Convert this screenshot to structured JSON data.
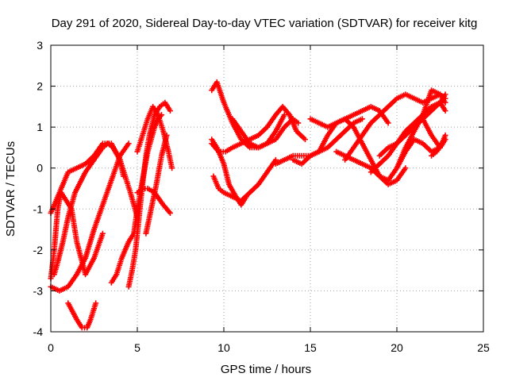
{
  "colors": {
    "series": "#ff0000",
    "grid": "#a0a0a0",
    "axis": "#000000"
  },
  "chart_data": {
    "type": "scatter",
    "title": "Day 291 of 2020, Sidereal Day-to-day VTEC variation (SDTVAR) for receiver kitg",
    "xlabel": "GPS time / hours",
    "ylabel": "SDTVAR / TECUs",
    "xlim": [
      0,
      25
    ],
    "ylim": [
      -4,
      3
    ],
    "xticks": [
      "0",
      "5",
      "10",
      "15",
      "20",
      "25"
    ],
    "yticks": [
      "-4",
      "-3",
      "-2",
      "-1",
      "0",
      "1",
      "2",
      "3"
    ],
    "grid": true,
    "marker": "plus",
    "series": [
      {
        "x": [
          0.0,
          0.5,
          1.0,
          1.5,
          2.0,
          2.5,
          3.0,
          3.5,
          4.0,
          4.2
        ],
        "y": [
          -1.1,
          -0.6,
          -0.1,
          0.0,
          0.1,
          0.3,
          0.6,
          0.6,
          0.2,
          -0.2
        ]
      },
      {
        "x": [
          0.0,
          0.2,
          0.4,
          0.6,
          0.9,
          1.2,
          1.5,
          2.0,
          2.5,
          3.0
        ],
        "y": [
          -2.7,
          -2.0,
          -1.0,
          -0.6,
          -0.8,
          -1.0,
          -1.8,
          -2.6,
          -2.2,
          -1.6
        ]
      },
      {
        "x": [
          0.0,
          0.5,
          1.0,
          1.5,
          2.0,
          2.5,
          3.0,
          3.5,
          4.0,
          4.5
        ],
        "y": [
          -2.9,
          -3.0,
          -2.9,
          -2.6,
          -2.2,
          -1.5,
          -0.9,
          -0.3,
          0.3,
          0.6
        ]
      },
      {
        "x": [
          1.0,
          1.5,
          1.8,
          2.1,
          2.3,
          2.6
        ],
        "y": [
          -3.3,
          -3.7,
          -3.9,
          -3.9,
          -3.7,
          -3.3
        ]
      },
      {
        "x": [
          0.2,
          0.4,
          0.7,
          1.0,
          1.4,
          2.0,
          2.5,
          3.0,
          3.3,
          3.6,
          4.0,
          4.3,
          4.6,
          5.0
        ],
        "y": [
          -2.6,
          -2.3,
          -1.8,
          -1.2,
          -0.6,
          -0.1,
          0.2,
          0.5,
          0.6,
          0.5,
          0.2,
          -0.2,
          -0.6,
          -1.2
        ]
      },
      {
        "x": [
          3.5,
          3.8,
          4.1,
          4.5,
          4.8,
          5.0,
          5.3,
          5.6,
          6.0,
          6.2,
          6.4
        ],
        "y": [
          -2.8,
          -2.6,
          -2.2,
          -1.8,
          -1.6,
          -1.0,
          -0.3,
          0.4,
          1.0,
          1.2,
          1.3
        ]
      },
      {
        "x": [
          4.5,
          4.7,
          4.9,
          5.1,
          5.3,
          5.5,
          5.7,
          6.0,
          6.3,
          6.6,
          6.9
        ],
        "y": [
          -2.9,
          -2.5,
          -2.0,
          -1.2,
          -0.4,
          0.3,
          0.8,
          1.3,
          1.5,
          1.6,
          1.4
        ]
      },
      {
        "x": [
          5.0,
          5.3,
          5.6,
          6.0,
          6.5,
          6.9
        ],
        "y": [
          -0.6,
          -0.5,
          -0.5,
          -0.6,
          -0.9,
          -1.1
        ]
      },
      {
        "x": [
          5.0,
          5.3,
          5.6,
          5.9,
          6.2,
          6.5,
          6.8,
          7.0
        ],
        "y": [
          0.4,
          0.8,
          1.2,
          1.5,
          1.3,
          0.9,
          0.4,
          0.0
        ]
      },
      {
        "x": [
          5.5,
          5.8,
          6.1,
          6.4,
          6.7
        ],
        "y": [
          -1.6,
          -1.0,
          -0.4,
          0.3,
          0.8
        ]
      },
      {
        "x": [
          9.3,
          9.6,
          10.0,
          10.5,
          11.0,
          11.5,
          12.0,
          12.5,
          13.0,
          13.5,
          14.0,
          14.3
        ],
        "y": [
          1.9,
          2.1,
          1.6,
          1.1,
          0.7,
          0.5,
          0.5,
          0.6,
          0.7,
          1.0,
          1.2,
          1.1
        ]
      },
      {
        "x": [
          9.3,
          9.6,
          10.0,
          10.3,
          10.7,
          11.0,
          11.3
        ],
        "y": [
          0.7,
          0.5,
          0.1,
          -0.4,
          -0.7,
          -0.9,
          -0.7
        ]
      },
      {
        "x": [
          9.4,
          9.7,
          10.0,
          10.5,
          11.0,
          11.5,
          12.0,
          12.5,
          13.0
        ],
        "y": [
          -0.2,
          -0.5,
          -0.6,
          -0.7,
          -0.8,
          -0.6,
          -0.4,
          -0.1,
          0.2
        ]
      },
      {
        "x": [
          9.3,
          9.7,
          10.1,
          10.5,
          11.0,
          11.5,
          12.0,
          12.5,
          13.0,
          13.4,
          13.8,
          14.2,
          14.7
        ],
        "y": [
          0.6,
          0.4,
          0.4,
          0.5,
          0.6,
          0.7,
          0.8,
          1.0,
          1.3,
          1.5,
          1.3,
          0.9,
          0.7
        ]
      },
      {
        "x": [
          10.5,
          11.0,
          11.5,
          12.0,
          12.5,
          13.0,
          13.5
        ],
        "y": [
          1.2,
          0.9,
          0.6,
          0.5,
          0.6,
          0.9,
          1.3
        ]
      },
      {
        "x": [
          13.0,
          13.5,
          14.0,
          14.5,
          15.0,
          15.5,
          16.0,
          16.5,
          17.0,
          17.5,
          18.0
        ],
        "y": [
          0.1,
          0.2,
          0.3,
          0.3,
          0.3,
          0.4,
          0.5,
          0.7,
          0.9,
          1.1,
          1.2
        ]
      },
      {
        "x": [
          14.0,
          14.5,
          15.0,
          15.5,
          16.0,
          16.5,
          17.0,
          17.5,
          18.0,
          18.5,
          19.0,
          19.5
        ],
        "y": [
          0.2,
          0.1,
          0.3,
          0.4,
          0.8,
          1.1,
          1.2,
          1.3,
          1.4,
          1.5,
          1.4,
          1.1
        ]
      },
      {
        "x": [
          15.0,
          15.5,
          16.0,
          16.5,
          17.0,
          17.5,
          18.0,
          18.5,
          19.0,
          19.5,
          20.0,
          20.5,
          21.0
        ],
        "y": [
          1.2,
          1.1,
          1.0,
          1.1,
          1.2,
          1.0,
          0.6,
          0.2,
          -0.2,
          -0.3,
          0.0,
          0.5,
          0.9
        ]
      },
      {
        "x": [
          16.5,
          17.0,
          17.5,
          18.0,
          18.5,
          19.0,
          19.5,
          20.0,
          20.5
        ],
        "y": [
          0.4,
          0.3,
          0.2,
          0.1,
          0.0,
          -0.2,
          -0.4,
          -0.3,
          0.0
        ]
      },
      {
        "x": [
          17.0,
          17.5,
          18.0,
          18.5,
          19.0,
          19.5,
          20.0,
          20.5,
          21.0,
          21.5,
          22.0,
          22.5,
          22.8
        ],
        "y": [
          0.2,
          0.5,
          0.8,
          1.1,
          1.3,
          1.5,
          1.7,
          1.8,
          1.7,
          1.6,
          1.7,
          1.8,
          1.7
        ]
      },
      {
        "x": [
          18.5,
          19.0,
          19.5,
          20.0,
          20.5,
          21.0,
          21.5,
          22.0,
          22.5,
          22.8
        ],
        "y": [
          -0.1,
          0.1,
          0.3,
          0.6,
          0.9,
          1.1,
          1.3,
          1.5,
          1.6,
          1.4
        ]
      },
      {
        "x": [
          19.0,
          19.5,
          20.0,
          20.5,
          21.0,
          21.5,
          22.0,
          22.5,
          22.8
        ],
        "y": [
          0.3,
          0.5,
          0.6,
          0.8,
          1.0,
          1.2,
          1.4,
          1.6,
          1.8
        ]
      },
      {
        "x": [
          20.0,
          20.5,
          21.0,
          21.5,
          22.0,
          22.5,
          22.8
        ],
        "y": [
          0.0,
          0.4,
          0.7,
          0.6,
          0.4,
          0.5,
          0.7
        ]
      },
      {
        "x": [
          21.0,
          21.5,
          22.0,
          22.5,
          22.8
        ],
        "y": [
          0.9,
          1.3,
          1.9,
          1.8,
          1.6
        ]
      },
      {
        "x": [
          21.5,
          22.0,
          22.5,
          22.8
        ],
        "y": [
          1.2,
          0.8,
          0.5,
          0.7
        ]
      },
      {
        "x": [
          22.0,
          22.3,
          22.6,
          22.8
        ],
        "y": [
          0.3,
          0.4,
          0.6,
          0.8
        ]
      }
    ]
  }
}
